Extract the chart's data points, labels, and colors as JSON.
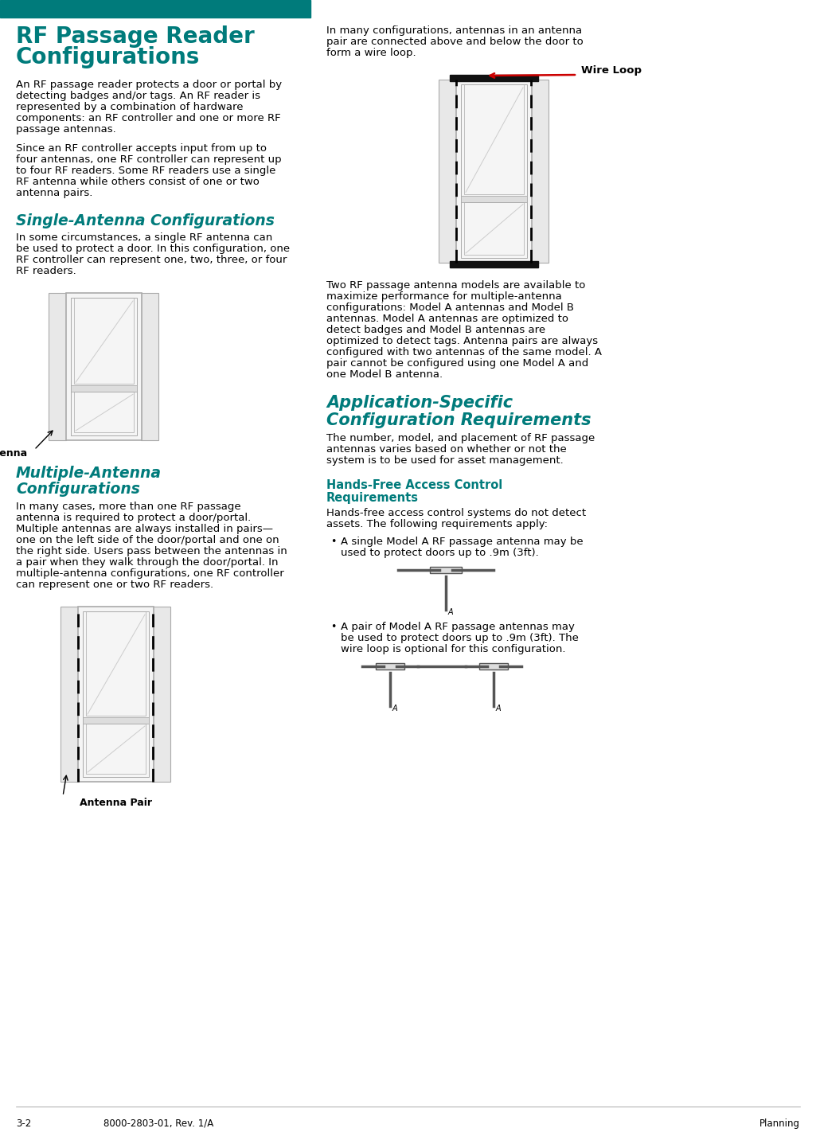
{
  "bg_color": "#ffffff",
  "teal_color": "#007B7B",
  "text_color": "#000000",
  "header_bar_color": "#007B7B",
  "red_arrow_color": "#cc0000",
  "main_title_line1": "RF Passage Reader",
  "main_title_line2": "Configurations",
  "section1_title": "Single-Antenna Configurations",
  "section2_title_line1": "Multiple-Antenna",
  "section2_title_line2": "Configurations",
  "section3_title_line1": "Application-Specific",
  "section3_title_line2": "Configuration Requirements",
  "subsection1_title_line1": "Hands-Free Access Control",
  "subsection1_title_line2": "Requirements",
  "para1_lines": [
    "An RF passage reader protects a door or portal by",
    "detecting badges and/or tags. An RF reader is",
    "represented by a combination of hardware",
    "components: an RF controller and one or more RF",
    "passage antennas."
  ],
  "para2_lines": [
    "Since an RF controller accepts input from up to",
    "four antennas, one RF controller can represent up",
    "to four RF readers. Some RF readers use a single",
    "RF antenna while others consist of one or two",
    "antenna pairs."
  ],
  "para3_lines": [
    "In some circumstances, a single RF antenna can",
    "be used to protect a door. In this configuration, one",
    "RF controller can represent one, two, three, or four",
    "RF readers."
  ],
  "para4_lines": [
    "In many cases, more than one RF passage",
    "antenna is required to protect a door/portal.",
    "Multiple antennas are always installed in pairs—",
    "one on the left side of the door/portal and one on",
    "the right side. Users pass between the antennas in",
    "a pair when they walk through the door/portal. In",
    "multiple-antenna configurations, one RF controller",
    "can represent one or two RF readers."
  ],
  "para5_lines": [
    "In many configurations, antennas in an antenna",
    "pair are connected above and below the door to",
    "form a wire loop."
  ],
  "para6_lines": [
    "Two RF passage antenna models are available to",
    "maximize performance for multiple-antenna",
    "configurations: Model A antennas and Model B",
    "antennas. Model A antennas are optimized to",
    "detect badges and Model B antennas are",
    "optimized to detect tags. Antenna pairs are always",
    "configured with two antennas of the same model. A",
    "pair cannot be configured using one Model A and",
    "one Model B antenna."
  ],
  "para7_lines": [
    "The number, model, and placement of RF passage",
    "antennas varies based on whether or not the",
    "system is to be used for asset management."
  ],
  "para8_lines": [
    "Hands-free access control systems do not detect",
    "assets. The following requirements apply:"
  ],
  "bullet1_lines": [
    "A single Model A RF passage antenna may be",
    "used to protect doors up to .9m (3ft)."
  ],
  "bullet2_lines": [
    "A pair of Model A RF passage antennas may",
    "be used to protect doors up to .9m (3ft). The",
    "wire loop is optional for this configuration."
  ],
  "footer_left": "3-2",
  "footer_center": "8000-2803-01, Rev. 1/A",
  "footer_right": "Planning",
  "label_antenna": "Antenna",
  "label_antenna_pair": "Antenna Pair",
  "label_wire_loop": "Wire Loop"
}
